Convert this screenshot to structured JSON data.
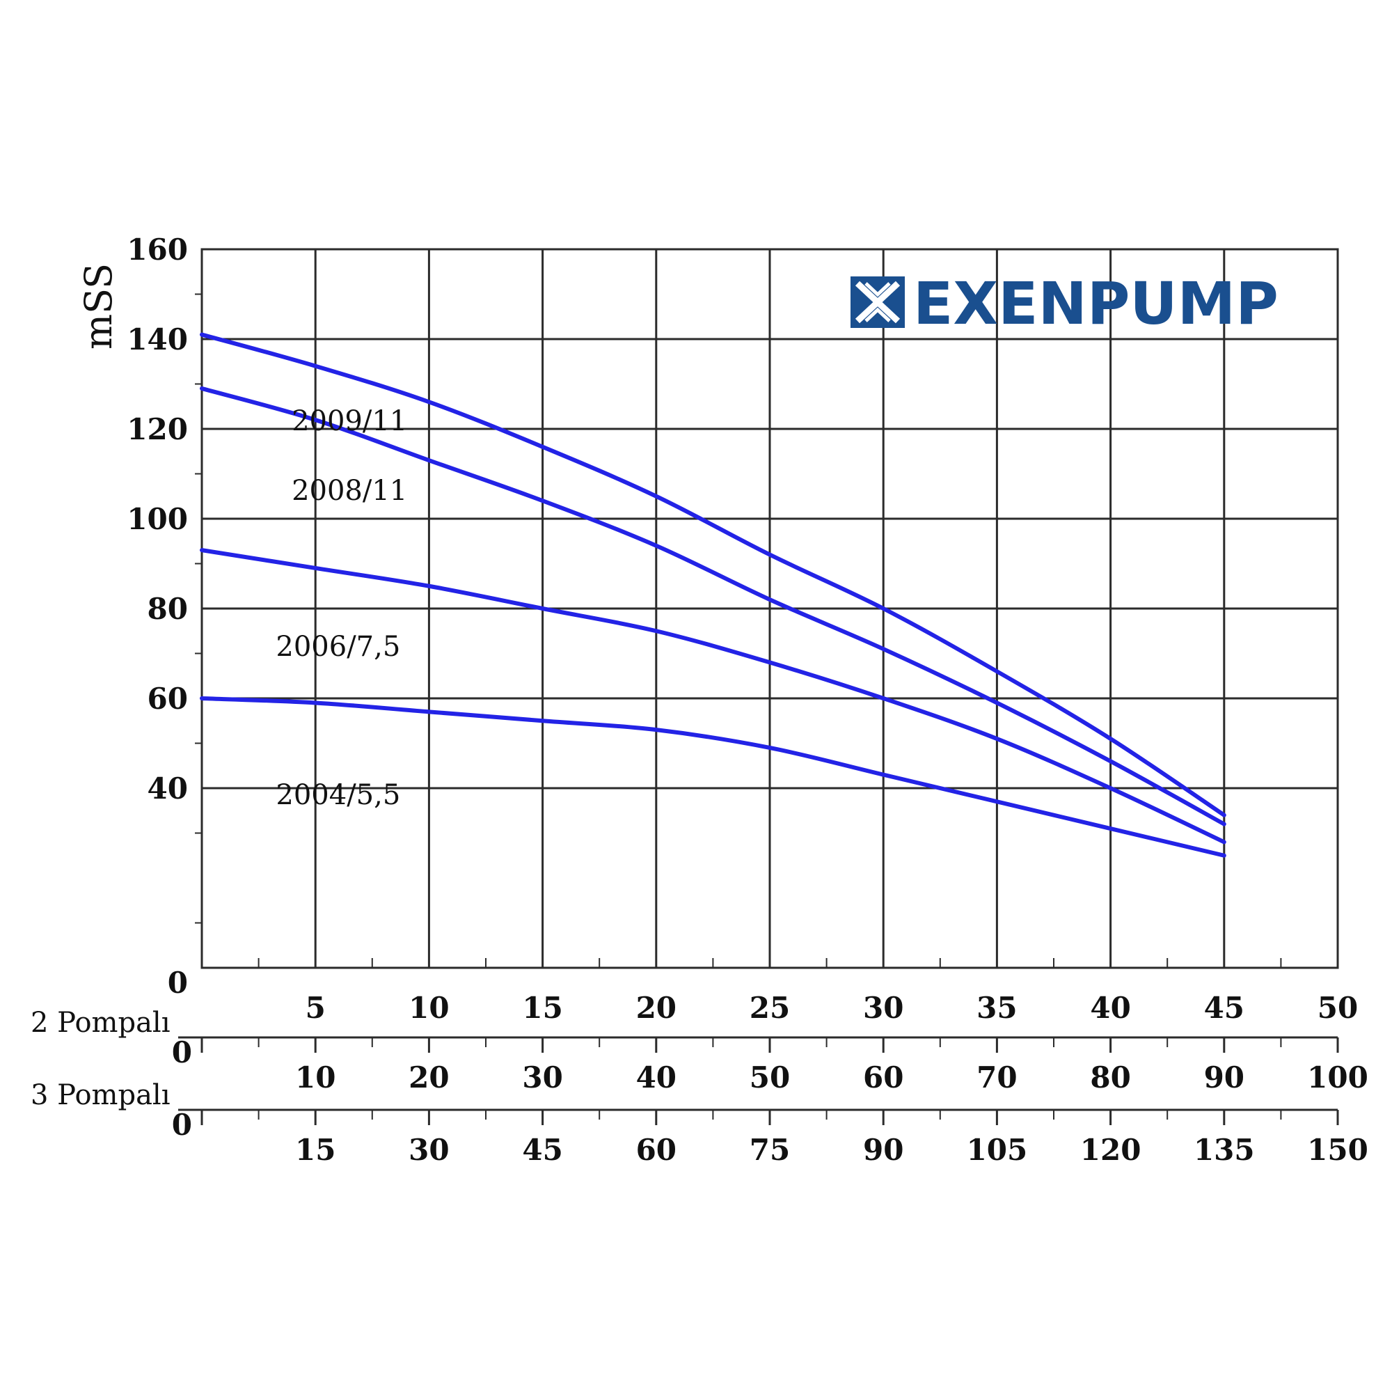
{
  "chart_data": {
    "type": "line",
    "ylabel": "mSS",
    "ylim": [
      0,
      160
    ],
    "xlim": [
      0,
      50
    ],
    "y_ticks": [
      "0",
      "40",
      "60",
      "80",
      "100",
      "120",
      "140",
      "160"
    ],
    "x_ticks": [
      "5",
      "10",
      "15",
      "20",
      "25",
      "30",
      "35",
      "40",
      "45",
      "50"
    ],
    "secondary_axes": [
      {
        "label": "2 Pompalı",
        "ticks": [
          "0",
          "10",
          "20",
          "30",
          "40",
          "50",
          "60",
          "70",
          "80",
          "90",
          "100"
        ]
      },
      {
        "label": "3 Pompalı",
        "ticks": [
          "0",
          "15",
          "30",
          "45",
          "60",
          "75",
          "90",
          "105",
          "120",
          "135",
          "150"
        ]
      }
    ],
    "grid": true,
    "logo": "EXENPUMP",
    "series": [
      {
        "name": "2009/11",
        "x": [
          0,
          5,
          10,
          15,
          20,
          25,
          30,
          35,
          40,
          45
        ],
        "y": [
          141,
          134,
          126,
          116,
          105,
          92,
          80,
          66,
          51,
          34
        ]
      },
      {
        "name": "2008/11",
        "x": [
          0,
          5,
          10,
          15,
          20,
          25,
          30,
          35,
          40,
          45
        ],
        "y": [
          129,
          122,
          113,
          104,
          94,
          82,
          71,
          59,
          46,
          32
        ]
      },
      {
        "name": "2006/7,5",
        "x": [
          0,
          5,
          10,
          15,
          20,
          25,
          30,
          35,
          40,
          45
        ],
        "y": [
          93,
          89,
          85,
          80,
          75,
          68,
          60,
          51,
          40,
          28
        ]
      },
      {
        "name": "2004/5,5",
        "x": [
          0,
          5,
          10,
          15,
          20,
          25,
          30,
          35,
          40,
          45
        ],
        "y": [
          60,
          59,
          57,
          55,
          53,
          49,
          43,
          37,
          31,
          25
        ]
      }
    ]
  },
  "colors": {
    "curve": "#2323e6",
    "grid": "#2b2b2b",
    "logo": "#1a4f8f"
  }
}
